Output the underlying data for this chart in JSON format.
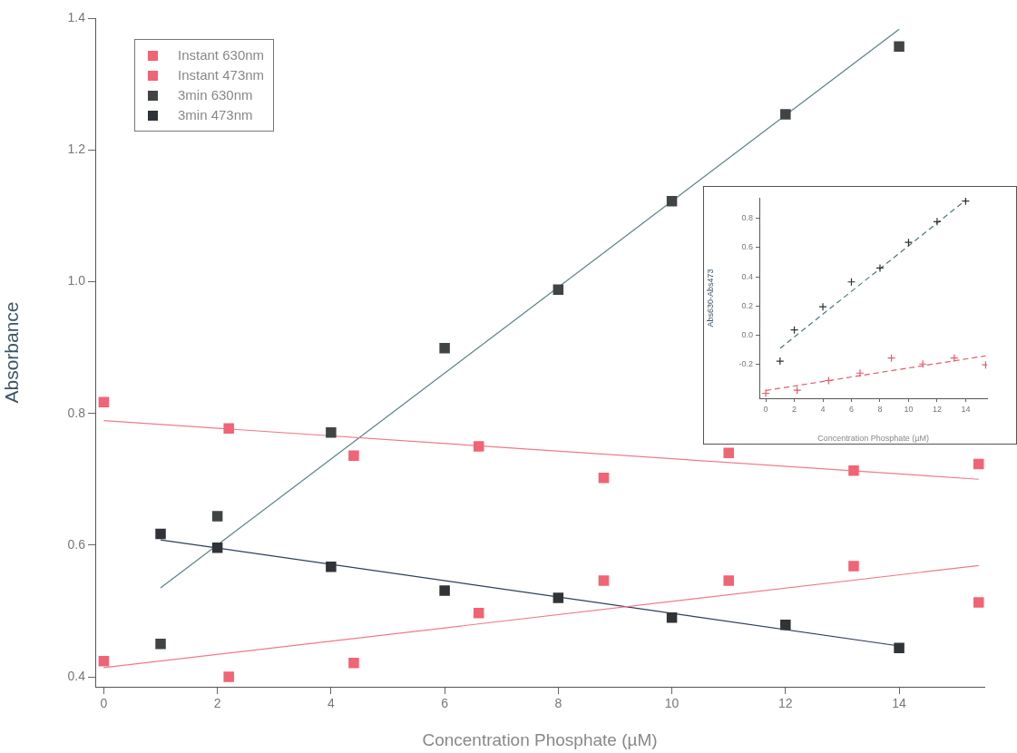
{
  "chart_data": [
    {
      "type": "scatter",
      "xlabel": "Concentration Phosphate (µM)",
      "ylabel": "Absorbance",
      "xlim": [
        -0.15,
        15.5
      ],
      "ylim": [
        0.385,
        1.4
      ],
      "xticks": [
        0,
        2,
        4,
        6,
        8,
        10,
        12,
        14
      ],
      "yticks": [
        0.4,
        0.6,
        0.8,
        {
          "value": 1,
          "label": "1.0"
        },
        1.2,
        1.4
      ],
      "marker": "square",
      "legend": "top left",
      "series": [
        {
          "name": "Instant 630nm",
          "color": "#f06474",
          "x": [
            0,
            2.2,
            4.4,
            6.6,
            8.8,
            11,
            13.2,
            15.4
          ],
          "values": [
            0.424,
            0.4,
            0.421,
            0.497,
            0.546,
            0.546,
            0.568,
            0.513
          ]
        },
        {
          "name": "Instant 473nm",
          "color": "#f06474",
          "x": [
            0,
            2.2,
            4.4,
            6.6,
            8.8,
            11,
            13.2,
            15.4
          ],
          "values": [
            0.817,
            0.777,
            0.736,
            0.75,
            0.702,
            0.74,
            0.713,
            0.723
          ]
        },
        {
          "name": "3min 630nm",
          "color": "#404444",
          "x": [
            1,
            2,
            4,
            6,
            8,
            10,
            12,
            14
          ],
          "values": [
            0.45,
            0.644,
            0.771,
            0.899,
            0.988,
            1.122,
            1.254,
            1.357
          ]
        },
        {
          "name": "3min 473nm",
          "color": "#303438",
          "x": [
            1,
            2,
            4,
            6,
            8,
            10,
            12,
            14
          ],
          "values": [
            0.617,
            0.596,
            0.567,
            0.531,
            0.52,
            0.49,
            0.479,
            0.444
          ]
        },
        {
          "type": "line",
          "color": "#f07a88",
          "marker": "none",
          "x": [
            0,
            15.4
          ],
          "values": [
            0.414,
            0.569
          ]
        },
        {
          "type": "line",
          "color": "#f07a88",
          "marker": "none",
          "x": [
            0,
            15.4
          ],
          "values": [
            0.789,
            0.7
          ]
        },
        {
          "type": "line",
          "color": "#5a8088",
          "marker": "none",
          "x": [
            1,
            14
          ],
          "values": [
            0.535,
            1.383
          ]
        },
        {
          "type": "line",
          "color": "#2e3e5a",
          "marker": "none",
          "x": [
            1,
            14
          ],
          "values": [
            0.608,
            0.447
          ]
        }
      ]
    },
    {
      "type": "scatter",
      "xlabel": "Concentration Phosphate (µM)",
      "ylabel": "Abs630-Abs473",
      "xlim": [
        -0.45,
        15.5
      ],
      "ylim": [
        -0.43,
        0.94
      ],
      "xticks": [
        0,
        2,
        4,
        6,
        8,
        10,
        12,
        14
      ],
      "yticks": [
        -0.2,
        {
          "value": 0,
          "label": "0.0"
        },
        0.2,
        0.4,
        0.6,
        0.8
      ],
      "marker": "cross",
      "series": [
        {
          "color": "#303030",
          "x": [
            1,
            2,
            4,
            6,
            8,
            10,
            12,
            14
          ],
          "values": [
            -0.176,
            0.037,
            0.195,
            0.365,
            0.46,
            0.635,
            0.777,
            0.917
          ]
        },
        {
          "color": "#e85868",
          "x": [
            0,
            2.2,
            4.4,
            6.6,
            8.8,
            11,
            13.2,
            15.4
          ],
          "values": [
            -0.396,
            -0.375,
            -0.309,
            -0.258,
            -0.155,
            -0.196,
            -0.155,
            -0.202
          ]
        },
        {
          "type": "line",
          "color": "#4a7a80",
          "marker": "none",
          "line_style": "dashed",
          "x": [
            1,
            14
          ],
          "values": [
            -0.089,
            0.923
          ]
        },
        {
          "type": "line",
          "color": "#e85868",
          "marker": "none",
          "line_style": "dashed",
          "x": [
            0,
            15.4
          ],
          "values": [
            -0.377,
            -0.14
          ]
        }
      ]
    }
  ]
}
